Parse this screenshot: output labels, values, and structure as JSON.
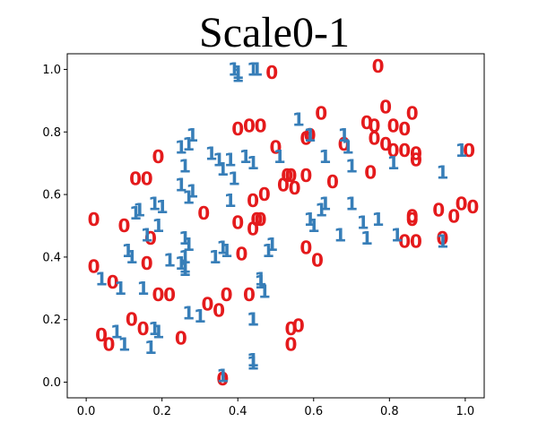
{
  "chart_data": {
    "type": "scatter",
    "title": "Scale0-1",
    "xlabel": "",
    "ylabel": "",
    "xlim": [
      -0.05,
      1.05
    ],
    "ylim": [
      -0.05,
      1.05
    ],
    "xticks": [
      0.0,
      0.2,
      0.4,
      0.6,
      0.8,
      1.0
    ],
    "yticks": [
      0.0,
      0.2,
      0.4,
      0.6,
      0.8,
      1.0
    ],
    "xtick_labels": [
      "0.0",
      "0.2",
      "0.4",
      "0.6",
      "0.8",
      "1.0"
    ],
    "ytick_labels": [
      "0.0",
      "0.2",
      "0.4",
      "0.6",
      "0.8",
      "1.0"
    ],
    "grid": false,
    "legend": false,
    "series": [
      {
        "marker_text": "0",
        "color": "#e41a1c",
        "points": [
          [
            0.02,
            0.52
          ],
          [
            0.02,
            0.37
          ],
          [
            0.04,
            0.15
          ],
          [
            0.06,
            0.12
          ],
          [
            0.07,
            0.32
          ],
          [
            0.1,
            0.5
          ],
          [
            0.12,
            0.2
          ],
          [
            0.13,
            0.65
          ],
          [
            0.15,
            0.17
          ],
          [
            0.16,
            0.65
          ],
          [
            0.16,
            0.38
          ],
          [
            0.17,
            0.46
          ],
          [
            0.19,
            0.28
          ],
          [
            0.19,
            0.72
          ],
          [
            0.22,
            0.28
          ],
          [
            0.25,
            0.14
          ],
          [
            0.31,
            0.54
          ],
          [
            0.32,
            0.25
          ],
          [
            0.35,
            0.23
          ],
          [
            0.36,
            0.01
          ],
          [
            0.37,
            0.28
          ],
          [
            0.4,
            0.51
          ],
          [
            0.4,
            0.81
          ],
          [
            0.41,
            0.41
          ],
          [
            0.43,
            0.82
          ],
          [
            0.43,
            0.28
          ],
          [
            0.44,
            0.49
          ],
          [
            0.44,
            0.58
          ],
          [
            0.45,
            0.52
          ],
          [
            0.46,
            0.82
          ],
          [
            0.46,
            0.52
          ],
          [
            0.47,
            0.6
          ],
          [
            0.49,
            0.99
          ],
          [
            0.5,
            0.75
          ],
          [
            0.52,
            0.63
          ],
          [
            0.53,
            0.66
          ],
          [
            0.54,
            0.17
          ],
          [
            0.54,
            0.12
          ],
          [
            0.54,
            0.66
          ],
          [
            0.55,
            0.62
          ],
          [
            0.56,
            0.18
          ],
          [
            0.58,
            0.43
          ],
          [
            0.58,
            0.78
          ],
          [
            0.58,
            0.66
          ],
          [
            0.59,
            0.79
          ],
          [
            0.61,
            0.39
          ],
          [
            0.62,
            0.86
          ],
          [
            0.65,
            0.64
          ],
          [
            0.68,
            0.76
          ],
          [
            0.74,
            0.83
          ],
          [
            0.75,
            0.67
          ],
          [
            0.76,
            0.78
          ],
          [
            0.76,
            0.82
          ],
          [
            0.77,
            1.01
          ],
          [
            0.79,
            0.88
          ],
          [
            0.79,
            0.76
          ],
          [
            0.81,
            0.82
          ],
          [
            0.81,
            0.74
          ],
          [
            0.84,
            0.45
          ],
          [
            0.84,
            0.81
          ],
          [
            0.84,
            0.74
          ],
          [
            0.86,
            0.52
          ],
          [
            0.86,
            0.53
          ],
          [
            0.86,
            0.86
          ],
          [
            0.87,
            0.45
          ],
          [
            0.87,
            0.73
          ],
          [
            0.87,
            0.71
          ],
          [
            0.93,
            0.55
          ],
          [
            0.94,
            0.46
          ],
          [
            0.97,
            0.53
          ],
          [
            0.99,
            0.57
          ],
          [
            1.01,
            0.74
          ],
          [
            1.02,
            0.56
          ]
        ]
      },
      {
        "marker_text": "1",
        "color": "#377eb8",
        "points": [
          [
            0.04,
            0.33
          ],
          [
            0.08,
            0.16
          ],
          [
            0.09,
            0.3
          ],
          [
            0.1,
            0.12
          ],
          [
            0.11,
            0.42
          ],
          [
            0.12,
            0.4
          ],
          [
            0.13,
            0.54
          ],
          [
            0.14,
            0.55
          ],
          [
            0.15,
            0.3
          ],
          [
            0.16,
            0.47
          ],
          [
            0.17,
            0.11
          ],
          [
            0.18,
            0.17
          ],
          [
            0.18,
            0.57
          ],
          [
            0.19,
            0.5
          ],
          [
            0.19,
            0.16
          ],
          [
            0.2,
            0.56
          ],
          [
            0.22,
            0.39
          ],
          [
            0.25,
            0.38
          ],
          [
            0.25,
            0.63
          ],
          [
            0.25,
            0.75
          ],
          [
            0.26,
            0.4
          ],
          [
            0.26,
            0.46
          ],
          [
            0.26,
            0.69
          ],
          [
            0.26,
            0.36
          ],
          [
            0.26,
            0.37
          ],
          [
            0.27,
            0.59
          ],
          [
            0.27,
            0.76
          ],
          [
            0.27,
            0.44
          ],
          [
            0.27,
            0.22
          ],
          [
            0.28,
            0.79
          ],
          [
            0.28,
            0.61
          ],
          [
            0.3,
            0.21
          ],
          [
            0.33,
            0.73
          ],
          [
            0.34,
            0.4
          ],
          [
            0.35,
            0.71
          ],
          [
            0.36,
            0.43
          ],
          [
            0.36,
            0.68
          ],
          [
            0.36,
            0.02
          ],
          [
            0.37,
            0.42
          ],
          [
            0.38,
            0.58
          ],
          [
            0.38,
            0.71
          ],
          [
            0.39,
            0.65
          ],
          [
            0.39,
            1.0
          ],
          [
            0.4,
            0.98
          ],
          [
            0.4,
            0.99
          ],
          [
            0.42,
            0.72
          ],
          [
            0.44,
            1.0
          ],
          [
            0.44,
            0.7
          ],
          [
            0.44,
            0.2
          ],
          [
            0.44,
            0.2
          ],
          [
            0.44,
            0.07
          ],
          [
            0.44,
            0.06
          ],
          [
            0.45,
            1.0
          ],
          [
            0.46,
            0.33
          ],
          [
            0.46,
            0.32
          ],
          [
            0.47,
            0.29
          ],
          [
            0.48,
            0.42
          ],
          [
            0.49,
            0.44
          ],
          [
            0.51,
            0.72
          ],
          [
            0.56,
            0.84
          ],
          [
            0.59,
            0.79
          ],
          [
            0.59,
            0.52
          ],
          [
            0.6,
            0.5
          ],
          [
            0.62,
            0.55
          ],
          [
            0.63,
            0.57
          ],
          [
            0.63,
            0.72
          ],
          [
            0.67,
            0.47
          ],
          [
            0.68,
            0.79
          ],
          [
            0.69,
            0.75
          ],
          [
            0.7,
            0.69
          ],
          [
            0.7,
            0.57
          ],
          [
            0.73,
            0.51
          ],
          [
            0.74,
            0.46
          ],
          [
            0.77,
            0.52
          ],
          [
            0.81,
            0.7
          ],
          [
            0.82,
            0.47
          ],
          [
            0.94,
            0.45
          ],
          [
            0.94,
            0.67
          ],
          [
            0.99,
            0.74
          ]
        ]
      }
    ]
  }
}
